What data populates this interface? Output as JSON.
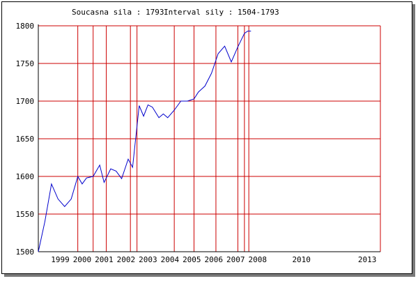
{
  "header": {
    "current_strength_label": "Soucasna sila : 1793",
    "interval_label": "Interval sily : 1504-1793"
  },
  "colors": {
    "line": "#0000cc",
    "grid": "#cc0000",
    "axis": "#000000"
  },
  "chart_data": {
    "type": "line",
    "title": "",
    "xlabel": "",
    "ylabel": "",
    "ylim": [
      1500,
      1800
    ],
    "xlim": [
      1998.0,
      2013.6
    ],
    "y_ticks": [
      1500,
      1550,
      1600,
      1650,
      1700,
      1750,
      1800
    ],
    "x_ticks": [
      {
        "label": "1999",
        "x": 1999.0
      },
      {
        "label": "2000",
        "x": 2000.0
      },
      {
        "label": "2001",
        "x": 2001.0
      },
      {
        "label": "2002",
        "x": 2002.0
      },
      {
        "label": "2003",
        "x": 2003.0
      },
      {
        "label": "2004",
        "x": 2004.0
      },
      {
        "label": "2005",
        "x": 2005.0
      },
      {
        "label": "2006",
        "x": 2006.0
      },
      {
        "label": "2007",
        "x": 2007.0
      },
      {
        "label": "2008",
        "x": 2008.0
      },
      {
        "label": "2010",
        "x": 2010.0
      },
      {
        "label": "2013",
        "x": 2013.0
      }
    ],
    "vertical_gridlines_x": [
      1999.8,
      2000.5,
      2001.1,
      2002.2,
      2002.5,
      2004.2,
      2005.1,
      2006.1,
      2007.1,
      2007.4,
      2007.6
    ],
    "grid": true,
    "series": [
      {
        "x": [
          1998.0,
          1998.3,
          1998.6,
          1998.9,
          1999.2,
          1999.5,
          1999.8,
          2000.0,
          2000.2,
          2000.5,
          2000.8,
          2001.0,
          2001.3,
          2001.55,
          2001.8,
          2002.1,
          2002.3,
          2002.6,
          2002.8,
          2003.0,
          2003.2,
          2003.5,
          2003.7,
          2003.9,
          2004.2,
          2004.5,
          2004.8,
          2005.1,
          2005.3,
          2005.6,
          2005.9,
          2006.2,
          2006.5,
          2006.8,
          2007.1,
          2007.4,
          2007.55,
          2007.7
        ],
        "values": [
          1500,
          1540,
          1590,
          1570,
          1560,
          1570,
          1600,
          1590,
          1598,
          1600,
          1615,
          1592,
          1610,
          1607,
          1597,
          1623,
          1612,
          1694,
          1680,
          1695,
          1692,
          1678,
          1683,
          1678,
          1688,
          1700,
          1700,
          1703,
          1712,
          1720,
          1737,
          1763,
          1773,
          1752,
          1772,
          1790,
          1793,
          1793
        ]
      }
    ]
  }
}
